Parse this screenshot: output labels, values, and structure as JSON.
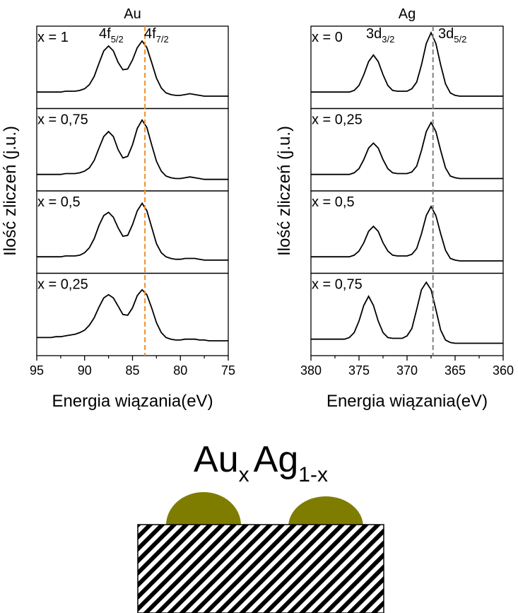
{
  "chart_data": [
    {
      "type": "line",
      "title": "Au",
      "x_label": "Energia wiązania(eV)",
      "y_label": "Ilość zliczeń (j.u.)",
      "x": [
        95,
        94.5,
        94,
        93.5,
        93,
        92.5,
        92,
        91.5,
        91,
        90.5,
        90,
        89.5,
        89,
        88.5,
        88,
        87.5,
        87,
        86.5,
        86,
        85.5,
        85,
        84.5,
        84,
        83.5,
        83,
        82.5,
        82,
        81.5,
        81,
        80.5,
        80,
        79.5,
        79,
        78.5,
        78,
        77.5,
        77,
        76.5,
        76,
        75.5,
        75
      ],
      "xlim": [
        95,
        75
      ],
      "xticks": [
        95,
        90,
        85,
        80,
        75
      ],
      "ylim": [
        0,
        1
      ],
      "reference_line": {
        "x": 83.7,
        "color": "#f0902a"
      },
      "peak_labels": [
        {
          "text": "4f",
          "sub": "5/2"
        },
        {
          "text": "4f",
          "sub": "7/2"
        }
      ],
      "series": [
        {
          "name": "x = 1",
          "color": "#000000",
          "values": [
            0.2,
            0.2,
            0.2,
            0.2,
            0.2,
            0.2,
            0.21,
            0.21,
            0.21,
            0.22,
            0.24,
            0.29,
            0.39,
            0.55,
            0.7,
            0.76,
            0.7,
            0.56,
            0.47,
            0.48,
            0.59,
            0.74,
            0.82,
            0.74,
            0.56,
            0.37,
            0.25,
            0.19,
            0.17,
            0.16,
            0.16,
            0.17,
            0.18,
            0.17,
            0.16,
            0.15,
            0.15,
            0.15,
            0.15,
            0.15,
            0.15
          ]
        },
        {
          "name": "x = 0,75",
          "color": "#000000",
          "values": [
            0.2,
            0.2,
            0.2,
            0.2,
            0.2,
            0.2,
            0.21,
            0.21,
            0.21,
            0.22,
            0.24,
            0.28,
            0.37,
            0.52,
            0.66,
            0.72,
            0.66,
            0.5,
            0.4,
            0.42,
            0.56,
            0.76,
            0.86,
            0.77,
            0.56,
            0.36,
            0.24,
            0.18,
            0.16,
            0.15,
            0.15,
            0.16,
            0.17,
            0.16,
            0.15,
            0.14,
            0.14,
            0.14,
            0.14,
            0.14,
            0.14
          ]
        },
        {
          "name": "x = 0,5",
          "color": "#000000",
          "values": [
            0.2,
            0.2,
            0.2,
            0.2,
            0.2,
            0.2,
            0.21,
            0.21,
            0.21,
            0.22,
            0.25,
            0.31,
            0.42,
            0.58,
            0.7,
            0.74,
            0.68,
            0.55,
            0.45,
            0.46,
            0.59,
            0.76,
            0.85,
            0.76,
            0.56,
            0.36,
            0.25,
            0.2,
            0.18,
            0.17,
            0.17,
            0.18,
            0.18,
            0.18,
            0.17,
            0.16,
            0.16,
            0.16,
            0.16,
            0.16,
            0.16
          ]
        },
        {
          "name": "x = 0,25",
          "color": "#000000",
          "values": [
            0.22,
            0.22,
            0.22,
            0.22,
            0.23,
            0.23,
            0.24,
            0.25,
            0.26,
            0.28,
            0.31,
            0.37,
            0.46,
            0.59,
            0.7,
            0.74,
            0.7,
            0.6,
            0.5,
            0.49,
            0.58,
            0.73,
            0.8,
            0.74,
            0.58,
            0.4,
            0.28,
            0.22,
            0.2,
            0.19,
            0.19,
            0.2,
            0.2,
            0.2,
            0.19,
            0.19,
            0.18,
            0.18,
            0.18,
            0.18,
            0.18
          ]
        }
      ]
    },
    {
      "type": "line",
      "title": "Ag",
      "x_label": "Energia wiązania(eV)",
      "y_label": "Ilość zliczeń (j.u.)",
      "x": [
        380,
        379.5,
        379,
        378.5,
        378,
        377.5,
        377,
        376.5,
        376,
        375.5,
        375,
        374.5,
        374,
        373.5,
        373,
        372.5,
        372,
        371.5,
        371,
        370.5,
        370,
        369.5,
        369,
        368.5,
        368,
        367.5,
        367,
        366.5,
        366,
        365.5,
        365,
        364.5,
        364,
        363.5,
        363,
        362.5,
        362,
        361.5,
        361,
        360.5,
        360
      ],
      "xlim": [
        380,
        360
      ],
      "xticks": [
        380,
        375,
        370,
        365,
        360
      ],
      "ylim": [
        0,
        1
      ],
      "reference_line": {
        "x": 367.3,
        "color": "#808080"
      },
      "peak_labels": [
        {
          "text": "3d",
          "sub": "3/2"
        },
        {
          "text": "3d",
          "sub": "5/2"
        }
      ],
      "series": [
        {
          "name": "x = 0",
          "color": "#000000",
          "values": [
            0.2,
            0.2,
            0.2,
            0.2,
            0.2,
            0.2,
            0.2,
            0.2,
            0.2,
            0.22,
            0.28,
            0.41,
            0.57,
            0.65,
            0.57,
            0.41,
            0.28,
            0.22,
            0.21,
            0.21,
            0.21,
            0.24,
            0.32,
            0.53,
            0.79,
            0.92,
            0.79,
            0.53,
            0.3,
            0.19,
            0.16,
            0.15,
            0.15,
            0.15,
            0.15,
            0.15,
            0.15,
            0.15,
            0.15,
            0.15,
            0.15
          ]
        },
        {
          "name": "x = 0,25",
          "color": "#000000",
          "values": [
            0.2,
            0.2,
            0.2,
            0.2,
            0.2,
            0.2,
            0.2,
            0.2,
            0.2,
            0.22,
            0.27,
            0.38,
            0.52,
            0.58,
            0.52,
            0.38,
            0.27,
            0.22,
            0.21,
            0.21,
            0.21,
            0.23,
            0.3,
            0.49,
            0.72,
            0.83,
            0.72,
            0.49,
            0.28,
            0.18,
            0.16,
            0.15,
            0.15,
            0.15,
            0.15,
            0.15,
            0.15,
            0.15,
            0.15,
            0.15,
            0.15
          ]
        },
        {
          "name": "x = 0,5",
          "color": "#000000",
          "values": [
            0.2,
            0.2,
            0.2,
            0.2,
            0.2,
            0.2,
            0.2,
            0.2,
            0.2,
            0.22,
            0.27,
            0.37,
            0.51,
            0.57,
            0.51,
            0.37,
            0.27,
            0.22,
            0.21,
            0.21,
            0.21,
            0.23,
            0.3,
            0.48,
            0.7,
            0.81,
            0.7,
            0.48,
            0.28,
            0.18,
            0.16,
            0.15,
            0.15,
            0.15,
            0.15,
            0.15,
            0.15,
            0.15,
            0.15,
            0.15,
            0.15
          ]
        },
        {
          "name": "x = 0,75",
          "color": "#000000",
          "values": [
            0.2,
            0.2,
            0.2,
            0.2,
            0.2,
            0.2,
            0.2,
            0.2,
            0.22,
            0.28,
            0.42,
            0.61,
            0.72,
            0.61,
            0.42,
            0.28,
            0.22,
            0.21,
            0.21,
            0.21,
            0.24,
            0.33,
            0.56,
            0.8,
            0.89,
            0.8,
            0.56,
            0.31,
            0.19,
            0.16,
            0.15,
            0.15,
            0.15,
            0.15,
            0.15,
            0.15,
            0.15,
            0.15,
            0.15,
            0.15,
            0.15
          ]
        }
      ]
    }
  ],
  "diagram": {
    "formula": [
      {
        "text": "Au",
        "sub": "x"
      },
      {
        "text": "Ag",
        "sub": "1-x"
      }
    ]
  }
}
